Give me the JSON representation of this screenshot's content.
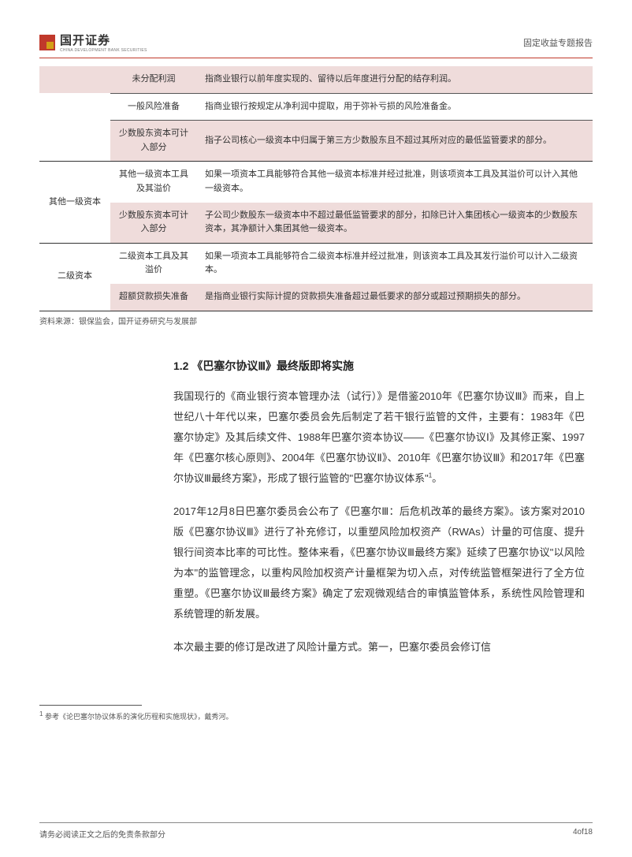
{
  "header": {
    "logo_cn": "国开证券",
    "logo_en": "CHINA DEVELOPMENT BANK SECURITIES",
    "doc_type": "固定收益专题报告"
  },
  "table": {
    "rows": [
      {
        "cat": "",
        "item": "未分配利润",
        "desc": "指商业银行以前年度实现的、留待以后年度进行分配的结存利润。",
        "style": "pink"
      },
      {
        "cat": "",
        "item": "一般风险准备",
        "desc": "指商业银行按规定从净利润中提取，用于弥补亏损的风险准备金。",
        "style": "white-thin"
      },
      {
        "cat": "",
        "item": "少数股东资本可计入部分",
        "desc": "指子公司核心一级资本中归属于第三方少数股东且不超过其所对应的最低监管要求的部分。",
        "style": "pink-thin"
      },
      {
        "cat": "其他一级资本",
        "item": "其他一级资本工具及其溢价",
        "desc": "如果一项资本工具能够符合其他一级资本标准并经过批准，则该项资本工具及其溢价可以计入其他一级资本。",
        "style": "white-thick",
        "rowspan": 2
      },
      {
        "cat": "",
        "item": "少数股东资本可计入部分",
        "desc": "子公司少数股东一级资本中不超过最低监管要求的部分，扣除已计入集团核心一级资本的少数股东资本，其净额计入集团其他一级资本。",
        "style": "pink"
      },
      {
        "cat": "二级资本",
        "item": "二级资本工具及其溢价",
        "desc": "如果一项资本工具能够符合二级资本标准并经过批准，则该资本工具及其发行溢价可以计入二级资本。",
        "style": "white-thick",
        "rowspan": 2
      },
      {
        "cat": "",
        "item": "超额贷款损失准备",
        "desc": "是指商业银行实际计提的贷款损失准备超过最低要求的部分或超过预期损失的部分。",
        "style": "pink-bottom"
      }
    ],
    "source": "资料来源：银保监会，国开证券研究与发展部"
  },
  "section": {
    "heading": "1.2 《巴塞尔协议Ⅲ》最终版即将实施",
    "para1": "我国现行的《商业银行资本管理办法（试行）》是借鉴2010年《巴塞尔协议Ⅲ》而来，自上世纪八十年代以来，巴塞尔委员会先后制定了若干银行监管的文件，主要有：1983年《巴塞尔协定》及其后续文件、1988年巴塞尔资本协议——《巴塞尔协议Ⅰ》及其修正案、1997年《巴塞尔核心原则》、2004年《巴塞尔协议Ⅱ》、2010年《巴塞尔协议Ⅲ》和2017年《巴塞尔协议Ⅲ最终方案》，形成了银行监管的\"巴塞尔协议体系\"",
    "para1_sup": "1",
    "para1_end": "。",
    "para2": "2017年12月8日巴塞尔委员会公布了《巴塞尔Ⅲ：后危机改革的最终方案》。该方案对2010版《巴塞尔协议Ⅲ》进行了补充修订，以重塑风险加权资产（RWAs）计量的可信度、提升银行间资本比率的可比性。整体来看，《巴塞尔协议Ⅲ最终方案》延续了巴塞尔协议\"以风险为本\"的监管理念，以重构风险加权资产计量框架为切入点，对传统监管框架进行了全方位重塑。《巴塞尔协议Ⅲ最终方案》确定了宏观微观结合的审慎监管体系，系统性风险管理和系统管理的新发展。",
    "para3": "本次最主要的修订是改进了风险计量方式。第一，巴塞尔委员会修订信"
  },
  "footnote": {
    "marker": "1",
    "text": " 参考《论巴塞尔协议体系的演化历程和实施现状》，戴秀河。"
  },
  "footer": {
    "left": "请务必阅读正文之后的免责条款部分",
    "right": "4of18"
  },
  "colors": {
    "accent": "#c0392b",
    "pink_row": "#efdcdb",
    "text": "#333333",
    "muted": "#555555"
  }
}
